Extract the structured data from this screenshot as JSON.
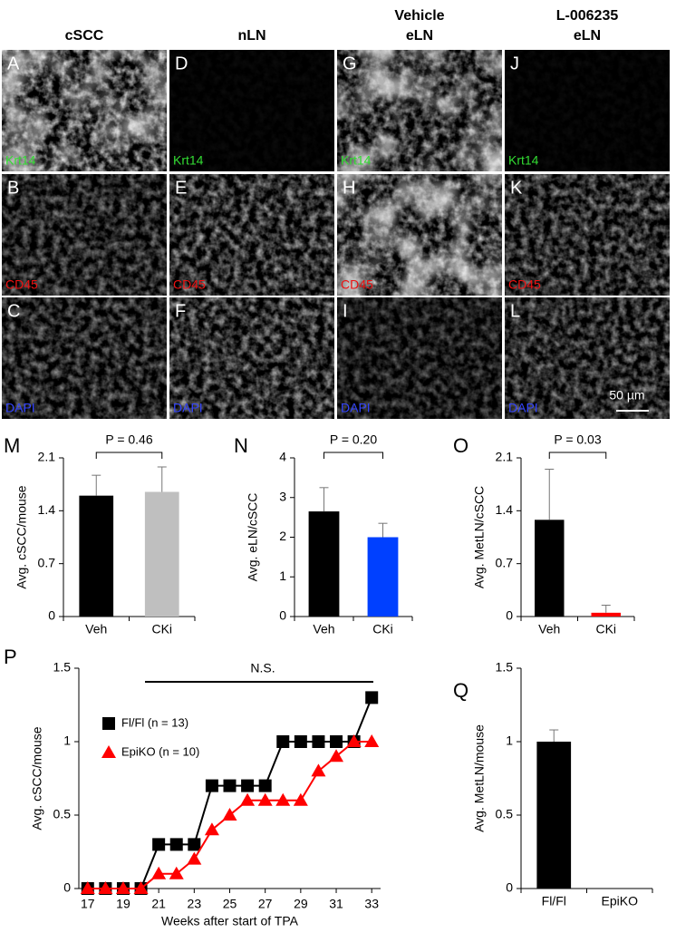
{
  "micrographs": {
    "columns": [
      [
        "cSCC"
      ],
      [
        "nLN"
      ],
      [
        "Vehicle",
        "eLN"
      ],
      [
        "L-006235",
        "eLN"
      ]
    ],
    "panels": [
      [
        "A",
        "B",
        "C"
      ],
      [
        "D",
        "E",
        "F"
      ],
      [
        "G",
        "H",
        "I"
      ],
      [
        "J",
        "K",
        "L"
      ]
    ],
    "stains": [
      "Krt14",
      "CD45",
      "DAPI"
    ],
    "scale_bar": "50 µm"
  },
  "chart_data": [
    {
      "type": "bar",
      "panel": "M",
      "ylabel": "Avg. cSCC/mouse",
      "categories": [
        "Veh",
        "CKi"
      ],
      "values": [
        1.6,
        1.65
      ],
      "errors": [
        0.27,
        0.33
      ],
      "colors": [
        "#000000",
        "#bfbfbf"
      ],
      "ylim": [
        0,
        2.1
      ],
      "yticks": [
        0,
        0.7,
        1.4,
        2.1
      ],
      "annotation": "P = 0.46"
    },
    {
      "type": "bar",
      "panel": "N",
      "ylabel": "Avg. eLN/cSCC",
      "categories": [
        "Veh",
        "CKi"
      ],
      "values": [
        2.65,
        2.0
      ],
      "errors": [
        0.6,
        0.35
      ],
      "colors": [
        "#000000",
        "#0040ff"
      ],
      "ylim": [
        0,
        4
      ],
      "yticks": [
        0,
        1,
        2,
        3,
        4
      ],
      "annotation": "P = 0.20"
    },
    {
      "type": "bar",
      "panel": "O",
      "ylabel": "Avg. MetLN/cSCC",
      "categories": [
        "Veh",
        "CKi"
      ],
      "values": [
        1.28,
        0.05
      ],
      "errors": [
        0.67,
        0.1
      ],
      "colors": [
        "#000000",
        "#ff0000"
      ],
      "ylim": [
        0,
        2.1
      ],
      "yticks": [
        0,
        0.7,
        1.4,
        2.1
      ],
      "annotation": "P = 0.03"
    },
    {
      "type": "line",
      "panel": "P",
      "xlabel": "Weeks after start of TPA",
      "ylabel": "Avg. cSCC/mouse",
      "annotation": "N.S.",
      "x": [
        17,
        18,
        19,
        20,
        21,
        22,
        23,
        24,
        25,
        26,
        27,
        28,
        29,
        30,
        31,
        32,
        33
      ],
      "series": [
        {
          "name": "Fl/Fl (n = 13)",
          "color": "#000000",
          "marker": "square",
          "values": [
            0,
            0,
            0,
            0,
            0.3,
            0.3,
            0.3,
            0.7,
            0.7,
            0.7,
            0.7,
            1.0,
            1.0,
            1.0,
            1.0,
            1.0,
            1.3
          ]
        },
        {
          "name": "EpiKO (n = 10)",
          "color": "#ff0000",
          "marker": "triangle",
          "values": [
            0,
            0,
            0,
            0,
            0.1,
            0.1,
            0.2,
            0.4,
            0.5,
            0.6,
            0.6,
            0.6,
            0.6,
            0.8,
            0.9,
            1.0,
            1.0
          ]
        }
      ],
      "xlim": [
        16.5,
        33.5
      ],
      "xticks": [
        17,
        19,
        21,
        23,
        25,
        27,
        29,
        31,
        33
      ],
      "ylim": [
        0,
        1.5
      ],
      "yticks": [
        0,
        0.5,
        1,
        1.5
      ]
    },
    {
      "type": "bar",
      "panel": "Q",
      "ylabel": "Avg. MetLN/mouse",
      "categories": [
        "Fl/Fl",
        "EpiKO"
      ],
      "values": [
        1.0,
        0
      ],
      "errors": [
        0.08,
        null
      ],
      "colors": [
        "#000000",
        "#000000"
      ],
      "ylim": [
        0,
        1.5
      ],
      "yticks": [
        0,
        0.5,
        1,
        1.5
      ]
    }
  ]
}
